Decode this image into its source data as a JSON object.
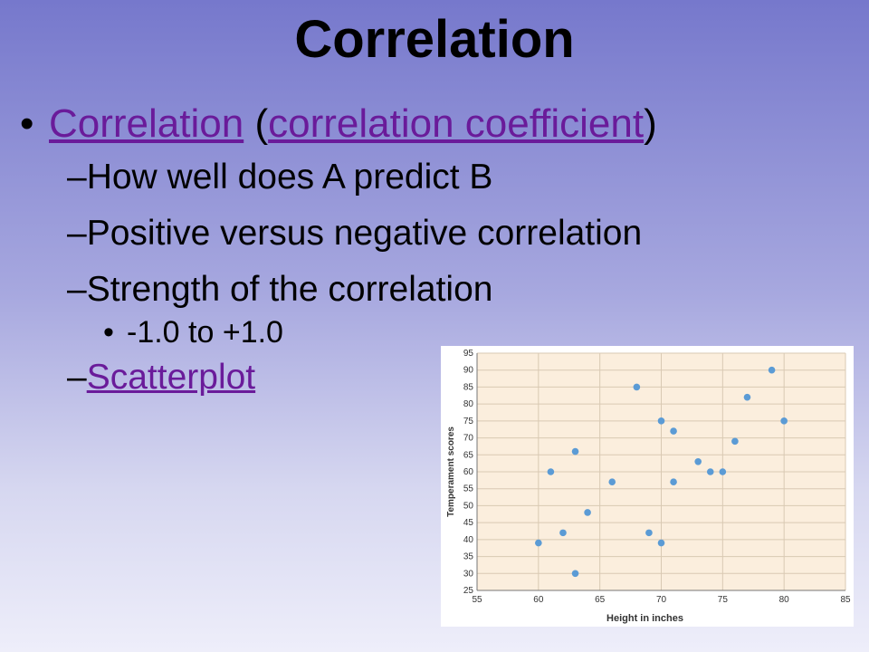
{
  "slide": {
    "title": "Correlation",
    "bullet_symbol": "•",
    "dash_symbol": "–",
    "main_bullet": {
      "link1": "Correlation",
      "open": " (",
      "link2": "correlation coefficient",
      "close": ")"
    },
    "sub1": "How well does A predict B",
    "sub2": "Positive versus negative correlation",
    "sub3": "Strength of the correlation",
    "subsub": "-1.0  to  +1.0",
    "sub4_link": "Scatterplot"
  },
  "colors": {
    "link": "#6a1b9a",
    "point": "#5b9bd5",
    "plot_bg": "#fbeedd",
    "grid": "#d9c9b3"
  },
  "chart_data": {
    "type": "scatter",
    "title": "",
    "xlabel": "Height in inches",
    "ylabel": "Temperament scores",
    "xlim": [
      55,
      85
    ],
    "ylim": [
      25,
      95
    ],
    "x_ticks": [
      "55",
      "60",
      "65",
      "70",
      "75",
      "80",
      "85"
    ],
    "y_ticks": [
      "25",
      "30",
      "35",
      "40",
      "45",
      "50",
      "55",
      "60",
      "65",
      "70",
      "75",
      "80",
      "85",
      "90",
      "95"
    ],
    "grid": true,
    "points": [
      {
        "x": 60,
        "y": 39
      },
      {
        "x": 61,
        "y": 60
      },
      {
        "x": 62,
        "y": 42
      },
      {
        "x": 63,
        "y": 66
      },
      {
        "x": 63,
        "y": 30
      },
      {
        "x": 64,
        "y": 48
      },
      {
        "x": 66,
        "y": 57
      },
      {
        "x": 68,
        "y": 85
      },
      {
        "x": 69,
        "y": 42
      },
      {
        "x": 70,
        "y": 75
      },
      {
        "x": 70,
        "y": 39
      },
      {
        "x": 71,
        "y": 72
      },
      {
        "x": 71,
        "y": 57
      },
      {
        "x": 73,
        "y": 63
      },
      {
        "x": 74,
        "y": 60
      },
      {
        "x": 75,
        "y": 60
      },
      {
        "x": 76,
        "y": 69
      },
      {
        "x": 77,
        "y": 82
      },
      {
        "x": 79,
        "y": 90
      },
      {
        "x": 80,
        "y": 75
      }
    ]
  }
}
